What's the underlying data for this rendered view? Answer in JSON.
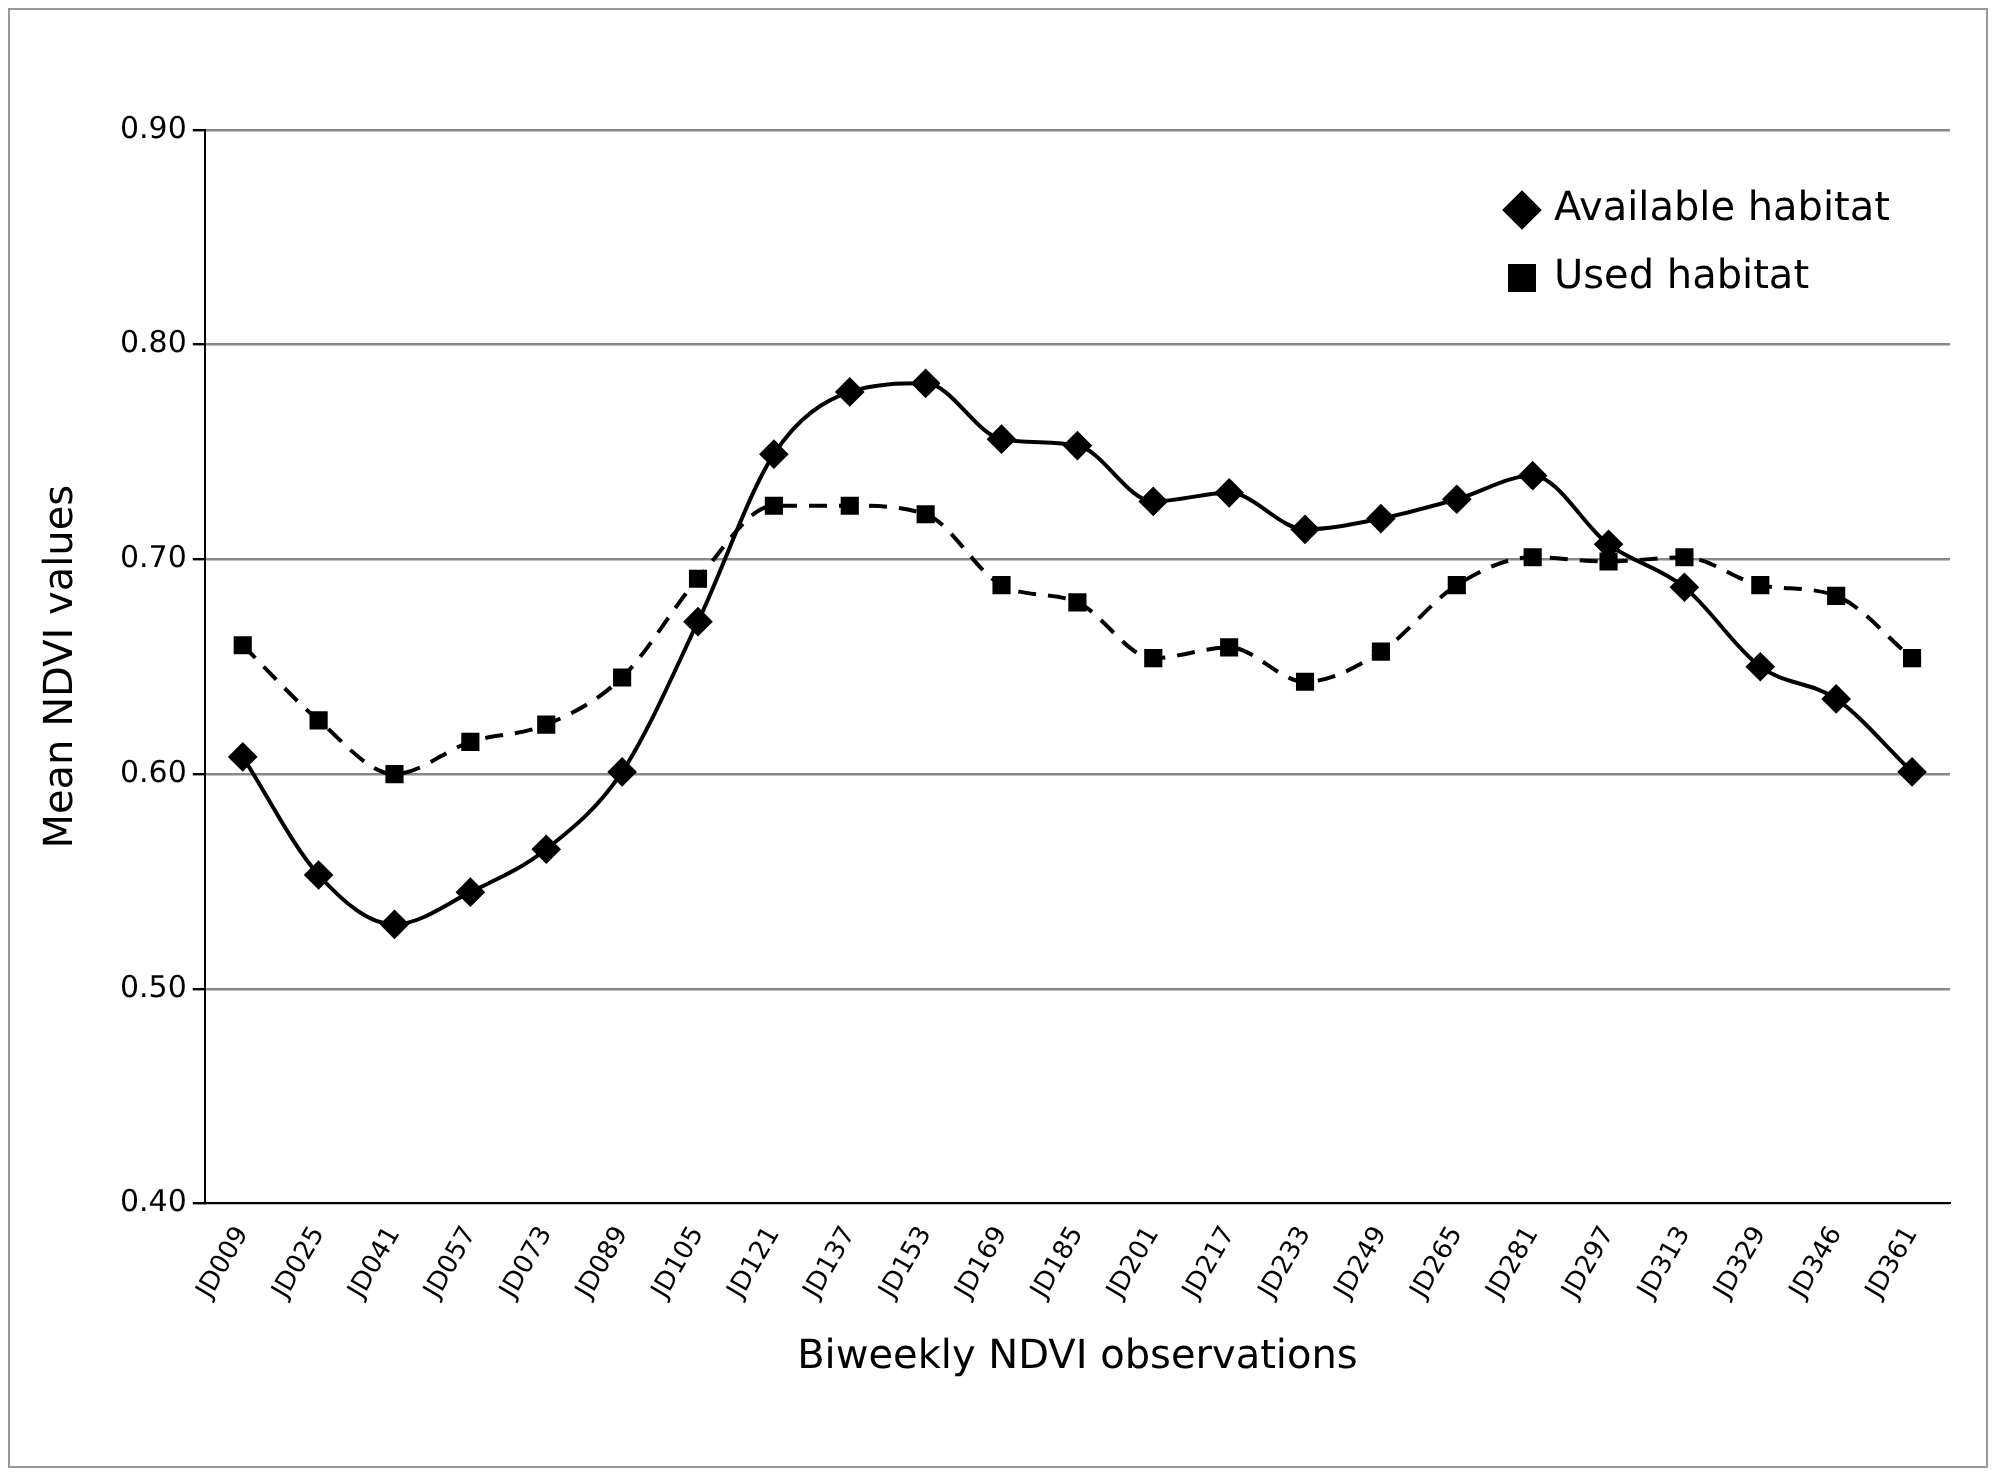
{
  "chart_data": {
    "type": "line",
    "xlabel": "Biweekly NDVI observations",
    "ylabel": "Mean NDVI values",
    "categories": [
      "JD009",
      "JD025",
      "JD041",
      "JD057",
      "JD073",
      "JD089",
      "JD105",
      "JD121",
      "JD137",
      "JD153",
      "JD169",
      "JD185",
      "JD201",
      "JD217",
      "JD233",
      "JD249",
      "JD265",
      "JD281",
      "JD297",
      "JD313",
      "JD329",
      "JD346",
      "JD361"
    ],
    "series": [
      {
        "name": "Available habitat",
        "color": "#000000",
        "marker": "diamond",
        "line_style": "solid",
        "values": [
          0.608,
          0.553,
          0.53,
          0.545,
          0.565,
          0.601,
          0.671,
          0.749,
          0.778,
          0.782,
          0.756,
          0.753,
          0.727,
          0.731,
          0.714,
          0.719,
          0.728,
          0.739,
          0.707,
          0.687,
          0.65,
          0.635,
          0.601
        ]
      },
      {
        "name": "Used habitat",
        "color": "#000000",
        "marker": "square",
        "line_style": "dashed",
        "values": [
          0.66,
          0.625,
          0.6,
          0.615,
          0.623,
          0.645,
          0.691,
          0.725,
          0.725,
          0.721,
          0.688,
          0.68,
          0.654,
          0.659,
          0.643,
          0.657,
          0.688,
          0.701,
          0.699,
          0.701,
          0.688,
          0.683,
          0.654
        ]
      }
    ],
    "ylim": [
      0.4,
      0.9
    ],
    "yticks": [
      {
        "value": 0.4,
        "label": "0.40"
      },
      {
        "value": 0.5,
        "label": "0.50"
      },
      {
        "value": 0.6,
        "label": "0.60"
      },
      {
        "value": 0.7,
        "label": "0.70"
      },
      {
        "value": 0.8,
        "label": "0.80"
      },
      {
        "value": 0.9,
        "label": "0.90"
      }
    ],
    "grid": "y",
    "legend": "top right"
  }
}
